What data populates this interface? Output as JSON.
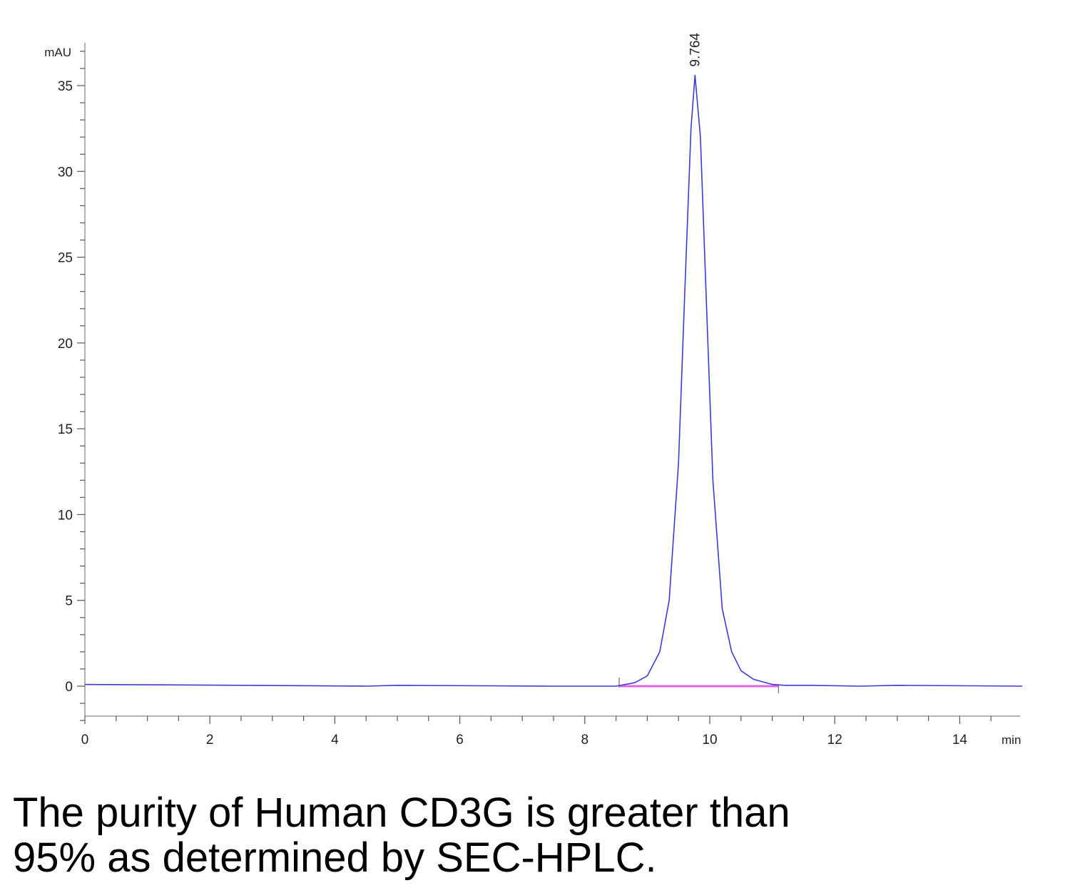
{
  "chart_data": {
    "type": "line",
    "xlabel": "min",
    "ylabel": "mAU",
    "xlim": [
      0,
      15
    ],
    "ylim": [
      -2,
      37
    ],
    "x_ticks": [
      0,
      2,
      4,
      6,
      8,
      10,
      12,
      14
    ],
    "y_ticks": [
      0,
      5,
      10,
      15,
      20,
      25,
      30,
      35
    ],
    "series": [
      {
        "color": "#3b3bd6",
        "x": [
          0,
          2.5,
          4.5,
          5.0,
          7.4,
          8.5,
          8.8,
          9.0,
          9.2,
          9.35,
          9.5,
          9.6,
          9.7,
          9.764,
          9.85,
          9.95,
          10.05,
          10.2,
          10.35,
          10.5,
          10.7,
          11.0,
          11.2,
          11.6,
          12.4,
          13.0,
          15.0
        ],
        "y": [
          0.1,
          0.05,
          0.0,
          0.05,
          0.0,
          0.0,
          0.2,
          0.6,
          2.0,
          5.0,
          13.0,
          23.0,
          32.5,
          35.6,
          32.0,
          22.0,
          12.0,
          4.5,
          2.0,
          0.9,
          0.4,
          0.1,
          0.05,
          0.05,
          0.0,
          0.05,
          0.0
        ]
      }
    ],
    "baseline": {
      "color": "#e066e6",
      "x_start": 8.55,
      "x_end": 11.1,
      "y": 0.0
    },
    "annotations": [
      {
        "text": "9.764",
        "x": 9.764,
        "y": 35.6
      }
    ]
  },
  "caption": {
    "line1": "The purity of Human CD3G is greater than",
    "line2": "95% as determined by SEC-HPLC."
  }
}
